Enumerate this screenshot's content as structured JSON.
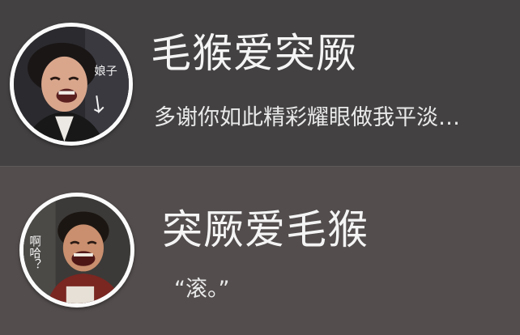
{
  "conversations": [
    {
      "name": "毛猴爱突厥",
      "preview": "多谢你如此精彩耀眼做我平淡…",
      "avatar_caption": "娘子"
    },
    {
      "name": "突厥爱毛猴",
      "preview": "“滚。”",
      "avatar_caption": "啊哈？"
    }
  ],
  "colors": {
    "top_row_bg": "#434141",
    "bottom_row_bg": "#534d4d",
    "text": "#f4f4f4",
    "avatar_ring": "#fbfbfb"
  }
}
